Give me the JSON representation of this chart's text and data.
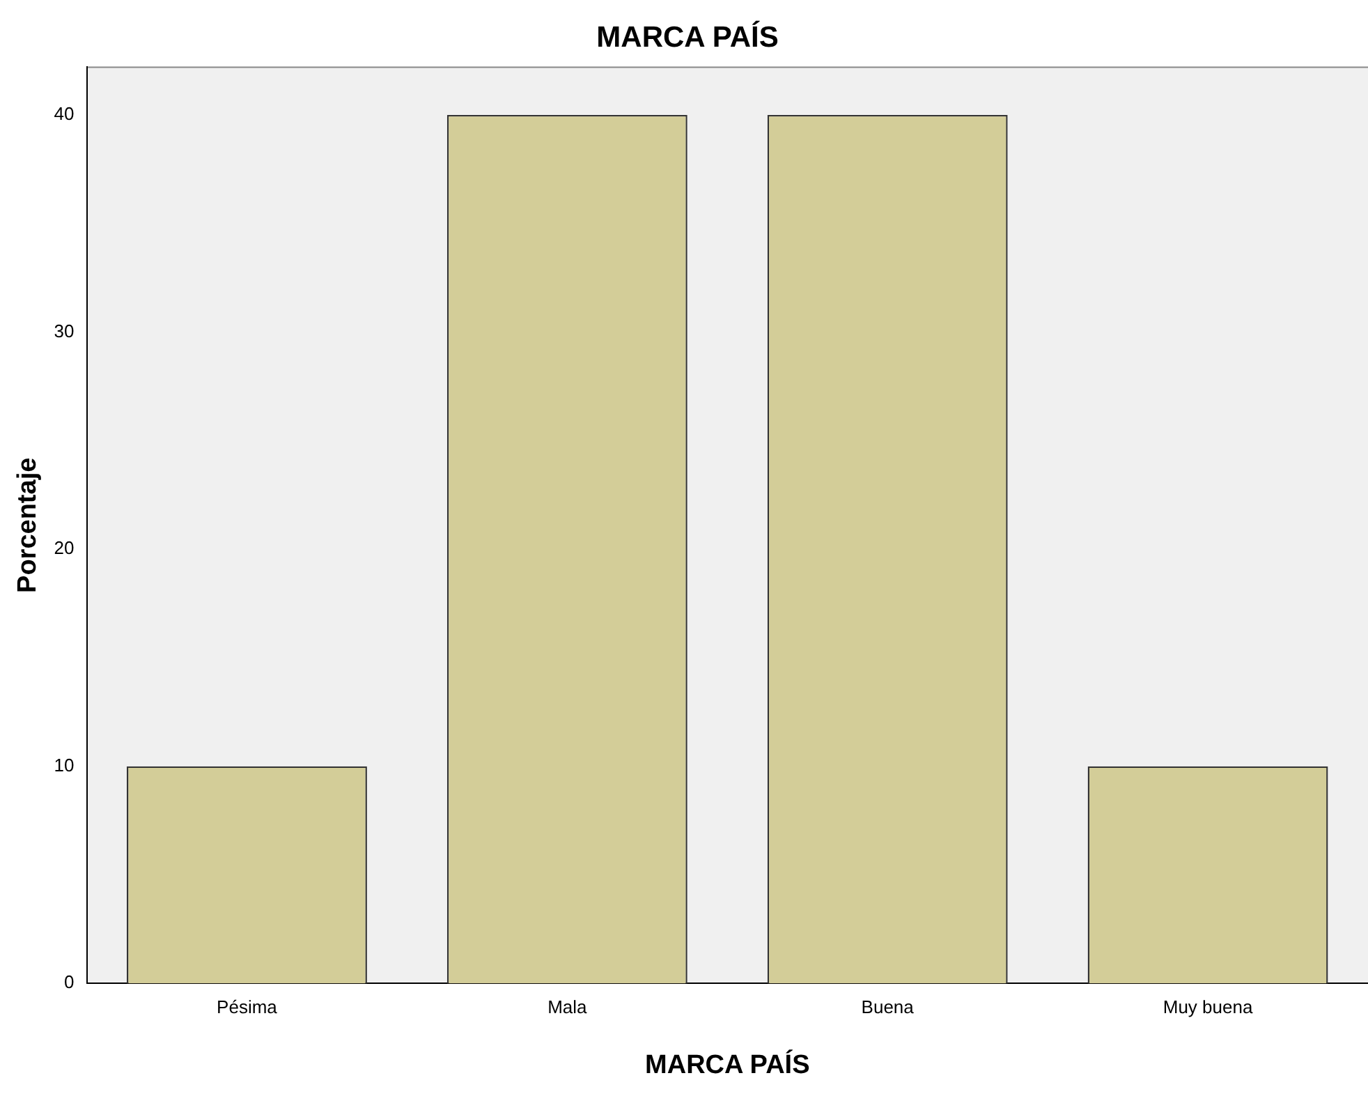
{
  "chart_data": {
    "type": "bar",
    "title": "MARCA PAÍS",
    "xlabel": "MARCA PAÍS",
    "ylabel": "Porcentaje",
    "categories": [
      "Pésima",
      "Mala",
      "Buena",
      "Muy buena"
    ],
    "values": [
      10,
      40,
      40,
      10
    ],
    "color": "#d3cd98",
    "ylim": [
      0,
      42.2
    ],
    "yticks": [
      0,
      10,
      20,
      30,
      40
    ],
    "grid": false,
    "legend": false
  }
}
